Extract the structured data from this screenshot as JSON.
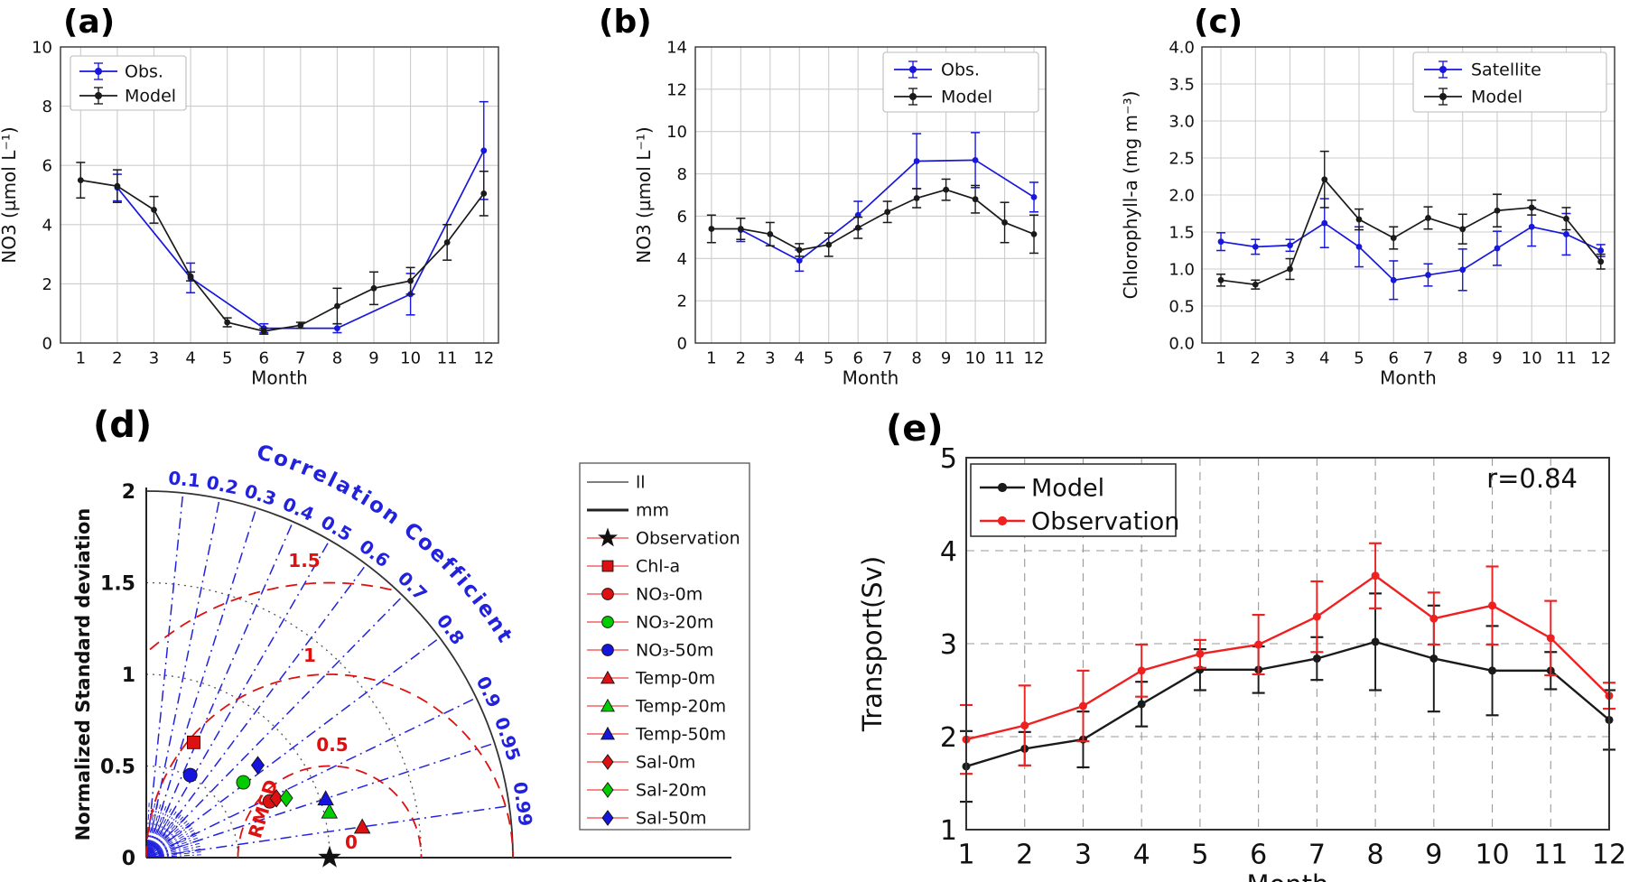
{
  "colors": {
    "blue": "#1717dd",
    "black": "#1a1a1a",
    "red": "#ee2020",
    "green": "#00cc00",
    "taylor_red": "#dd1111",
    "taylor_blue": "#2222dd",
    "grid_grey": "#cccccc",
    "dash_grey": "#999999"
  },
  "chart_data": [
    {
      "panel": "(a)",
      "type": "line",
      "xlabel": "Month",
      "ylabel": "NO3 (µmol L⁻¹)",
      "xlim": [
        0.45,
        12.4
      ],
      "ylim": [
        0,
        10
      ],
      "yticks": [
        0,
        2,
        4,
        6,
        8,
        10
      ],
      "ytick_labels": [
        "0",
        "2",
        "4",
        "6",
        "8",
        "10"
      ],
      "xticks": [
        1,
        2,
        3,
        4,
        5,
        6,
        7,
        8,
        9,
        10,
        11,
        12
      ],
      "xtick_labels": [
        "1",
        "2",
        "3",
        "4",
        "5",
        "6",
        "7",
        "8",
        "9",
        "10",
        "11",
        "12"
      ],
      "grid": "solid",
      "legend_pos": "upper-left",
      "series": [
        {
          "name": "Obs.",
          "color": "#1717dd",
          "x": [
            2,
            4,
            6,
            8,
            10,
            12
          ],
          "y": [
            5.25,
            2.2,
            0.5,
            0.5,
            1.65,
            6.5
          ],
          "err": [
            0.45,
            0.5,
            0.15,
            0.15,
            0.7,
            1.65
          ]
        },
        {
          "name": "Model",
          "color": "#1a1a1a",
          "x": [
            1,
            2,
            3,
            4,
            5,
            6,
            7,
            8,
            9,
            10,
            11,
            12
          ],
          "y": [
            5.5,
            5.3,
            4.5,
            2.25,
            0.7,
            0.4,
            0.6,
            1.25,
            1.85,
            2.1,
            3.4,
            5.05
          ],
          "err": [
            0.6,
            0.55,
            0.45,
            0.15,
            0.15,
            0.1,
            0.1,
            0.6,
            0.55,
            0.45,
            0.6,
            0.75
          ]
        }
      ]
    },
    {
      "panel": "(b)",
      "type": "line",
      "xlabel": "Month",
      "ylabel": "NO3 (µmol L⁻¹)",
      "xlim": [
        0.45,
        12.4
      ],
      "ylim": [
        0,
        14
      ],
      "yticks": [
        0,
        2,
        4,
        6,
        8,
        10,
        12,
        14
      ],
      "ytick_labels": [
        "0",
        "2",
        "4",
        "6",
        "8",
        "10",
        "12",
        "14"
      ],
      "xticks": [
        1,
        2,
        3,
        4,
        5,
        6,
        7,
        8,
        9,
        10,
        11,
        12
      ],
      "xtick_labels": [
        "1",
        "2",
        "3",
        "4",
        "5",
        "6",
        "7",
        "8",
        "9",
        "10",
        "11",
        "12"
      ],
      "grid": "solid",
      "legend_pos": "upper-right",
      "series": [
        {
          "name": "Obs.",
          "color": "#1717dd",
          "x": [
            2,
            4,
            6,
            8,
            10,
            12
          ],
          "y": [
            5.35,
            3.9,
            6.05,
            8.6,
            8.65,
            6.9
          ],
          "err": [
            0.55,
            0.5,
            0.65,
            1.3,
            1.3,
            0.7
          ]
        },
        {
          "name": "Model",
          "color": "#1a1a1a",
          "x": [
            1,
            2,
            3,
            4,
            5,
            6,
            7,
            8,
            9,
            10,
            11,
            12
          ],
          "y": [
            5.4,
            5.4,
            5.15,
            4.4,
            4.65,
            5.45,
            6.2,
            6.85,
            7.25,
            6.8,
            5.7,
            5.15
          ],
          "err": [
            0.65,
            0.5,
            0.55,
            0.3,
            0.55,
            0.5,
            0.5,
            0.45,
            0.5,
            0.65,
            0.95,
            0.9
          ]
        }
      ]
    },
    {
      "panel": "(c)",
      "type": "line",
      "xlabel": "Month",
      "ylabel": "Chlorophyll-a (mg m⁻³)",
      "xlim": [
        0.45,
        12.4
      ],
      "ylim": [
        0,
        4
      ],
      "yticks": [
        0,
        0.5,
        1,
        1.5,
        2,
        2.5,
        3,
        3.5,
        4
      ],
      "ytick_labels": [
        "0.0",
        "0.5",
        "1.0",
        "1.5",
        "2.0",
        "2.5",
        "3.0",
        "3.5",
        "4.0"
      ],
      "xticks": [
        1,
        2,
        3,
        4,
        5,
        6,
        7,
        8,
        9,
        10,
        11,
        12
      ],
      "xtick_labels": [
        "1",
        "2",
        "3",
        "4",
        "5",
        "6",
        "7",
        "8",
        "9",
        "10",
        "11",
        "12"
      ],
      "grid": "solid",
      "legend_pos": "upper-right",
      "series": [
        {
          "name": "Satellite",
          "color": "#1717dd",
          "x": [
            1,
            2,
            3,
            4,
            5,
            6,
            7,
            8,
            9,
            10,
            11,
            12
          ],
          "y": [
            1.37,
            1.3,
            1.32,
            1.62,
            1.3,
            0.85,
            0.92,
            0.99,
            1.28,
            1.57,
            1.47,
            1.25
          ],
          "err": [
            0.12,
            0.1,
            0.08,
            0.33,
            0.27,
            0.26,
            0.15,
            0.28,
            0.23,
            0.26,
            0.28,
            0.08
          ]
        },
        {
          "name": "Model",
          "color": "#1a1a1a",
          "x": [
            1,
            2,
            3,
            4,
            5,
            6,
            7,
            8,
            9,
            10,
            11,
            12
          ],
          "y": [
            0.85,
            0.79,
            1.0,
            2.21,
            1.67,
            1.42,
            1.69,
            1.54,
            1.79,
            1.83,
            1.68,
            1.1
          ],
          "err": [
            0.08,
            0.06,
            0.14,
            0.38,
            0.14,
            0.15,
            0.15,
            0.2,
            0.22,
            0.1,
            0.15,
            0.1
          ]
        }
      ]
    },
    {
      "panel": "(d)",
      "type": "taylor",
      "ylabel": "Normalized Standard deviation",
      "std_max": 2,
      "std_ticks": [
        0,
        0.5,
        1,
        1.5,
        2
      ],
      "std_tick_labels": [
        "0",
        "0.5",
        "1",
        "1.5",
        "2"
      ],
      "dotted_arcs": [
        0.5,
        1,
        1.5
      ],
      "corr_tick_values": [
        0.1,
        0.2,
        0.3,
        0.4,
        0.5,
        0.6,
        0.7,
        0.8,
        0.9,
        0.95,
        0.99
      ],
      "corr_tick_labels": [
        "0.1",
        "0.2",
        "0.3",
        "0.4",
        "0.5",
        "0.6",
        "0.7",
        "0.8",
        "0.9",
        "0.95",
        "0.99"
      ],
      "corr_title": "Correlation Coefficient",
      "rmsd_arc_values": [
        0.5,
        1,
        1.5
      ],
      "rmsd_arc_labels": [
        "0.5",
        "1",
        "1.5"
      ],
      "rmsd_zero_label": "0",
      "rmsd_title": "RMSD",
      "reference_std": 1,
      "points": [
        {
          "label": "Observation",
          "marker": "star",
          "color": "#111111",
          "std": 1.0,
          "corr": 1.0
        },
        {
          "label": "Chl-a",
          "marker": "square",
          "color": "#dd1111",
          "std": 0.68,
          "corr": 0.38
        },
        {
          "label": "NO₃-0m",
          "marker": "circle",
          "color": "#dd1111",
          "std": 0.74,
          "corr": 0.91
        },
        {
          "label": "NO₃-20m",
          "marker": "circle",
          "color": "#00cc00",
          "std": 0.67,
          "corr": 0.79
        },
        {
          "label": "NO₃-50m",
          "marker": "circle",
          "color": "#1515dd",
          "std": 0.51,
          "corr": 0.47
        },
        {
          "label": "Temp-0m",
          "marker": "triangle",
          "color": "#dd1111",
          "std": 1.19,
          "corr": 0.99
        },
        {
          "label": "Temp-20m",
          "marker": "triangle",
          "color": "#00cc00",
          "std": 1.03,
          "corr": 0.97
        },
        {
          "label": "Temp-50m",
          "marker": "triangle",
          "color": "#1515dd",
          "std": 1.03,
          "corr": 0.95
        },
        {
          "label": "Sal-0m",
          "marker": "diamond",
          "color": "#dd1111",
          "std": 0.78,
          "corr": 0.91
        },
        {
          "label": "Sal-20m",
          "marker": "diamond",
          "color": "#00cc00",
          "std": 0.83,
          "corr": 0.92
        },
        {
          "label": "Sal-50m",
          "marker": "diamond",
          "color": "#1515dd",
          "std": 0.79,
          "corr": 0.77
        }
      ],
      "legend": [
        {
          "label": "ll",
          "glyph": "line-thin"
        },
        {
          "label": "mm",
          "glyph": "line-thick"
        },
        {
          "label": "Observation",
          "glyph": "marker",
          "marker": "star",
          "color": "#111111"
        },
        {
          "label": "Chl-a",
          "glyph": "marker",
          "marker": "square",
          "color": "#dd1111"
        },
        {
          "label": "NO₃-0m",
          "glyph": "marker",
          "marker": "circle",
          "color": "#dd1111"
        },
        {
          "label": "NO₃-20m",
          "glyph": "marker",
          "marker": "circle",
          "color": "#00cc00"
        },
        {
          "label": "NO₃-50m",
          "glyph": "marker",
          "marker": "circle",
          "color": "#1515dd"
        },
        {
          "label": "Temp-0m",
          "glyph": "marker",
          "marker": "triangle",
          "color": "#dd1111"
        },
        {
          "label": "Temp-20m",
          "glyph": "marker",
          "marker": "triangle",
          "color": "#00cc00"
        },
        {
          "label": "Temp-50m",
          "glyph": "marker",
          "marker": "triangle",
          "color": "#1515dd"
        },
        {
          "label": "Sal-0m",
          "glyph": "marker",
          "marker": "diamond",
          "color": "#dd1111"
        },
        {
          "label": "Sal-20m",
          "glyph": "marker",
          "marker": "diamond",
          "color": "#00cc00"
        },
        {
          "label": "Sal-50m",
          "glyph": "marker",
          "marker": "diamond",
          "color": "#1515dd"
        }
      ]
    },
    {
      "panel": "(e)",
      "type": "line",
      "xlabel": "Month",
      "ylabel": "Transport(Sv)",
      "xlim": [
        1,
        12
      ],
      "ylim": [
        1,
        5
      ],
      "yticks": [
        1,
        2,
        3,
        4,
        5
      ],
      "ytick_labels": [
        "1",
        "2",
        "3",
        "4",
        "5"
      ],
      "xticks": [
        1,
        2,
        3,
        4,
        5,
        6,
        7,
        8,
        9,
        10,
        11,
        12
      ],
      "xtick_labels": [
        "1",
        "2",
        "3",
        "4",
        "5",
        "6",
        "7",
        "8",
        "9",
        "10",
        "11",
        "12"
      ],
      "grid": "dashed",
      "annotation": "r=0.84",
      "legend_pos": "upper-left",
      "series": [
        {
          "name": "Model",
          "color": "#1a1a1a",
          "x": [
            1,
            2,
            3,
            4,
            5,
            6,
            7,
            8,
            9,
            10,
            11,
            12
          ],
          "y": [
            1.68,
            1.87,
            1.97,
            2.35,
            2.72,
            2.72,
            2.84,
            3.02,
            2.84,
            2.71,
            2.71,
            2.18
          ],
          "err": [
            0.38,
            0.18,
            0.3,
            0.24,
            0.22,
            0.25,
            0.23,
            0.52,
            0.57,
            0.48,
            0.2,
            0.32
          ]
        },
        {
          "name": "Observation",
          "color": "#ee2020",
          "x": [
            1,
            2,
            3,
            4,
            5,
            6,
            7,
            8,
            9,
            10,
            11,
            12
          ],
          "y": [
            1.97,
            2.12,
            2.33,
            2.71,
            2.89,
            2.99,
            3.29,
            3.73,
            3.27,
            3.41,
            3.06,
            2.44
          ],
          "err": [
            0.37,
            0.43,
            0.38,
            0.28,
            0.15,
            0.32,
            0.38,
            0.35,
            0.28,
            0.42,
            0.4,
            0.14
          ]
        }
      ]
    }
  ]
}
